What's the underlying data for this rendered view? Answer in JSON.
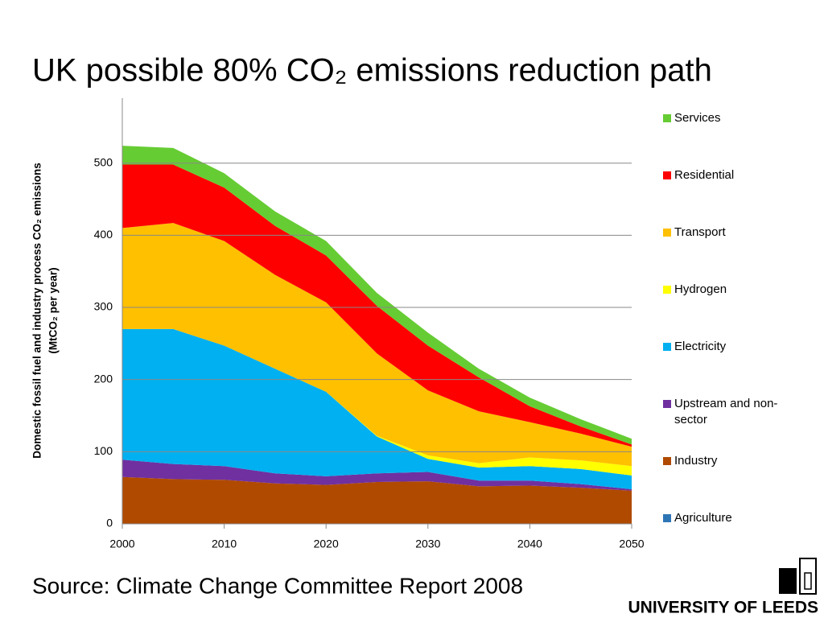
{
  "chart_data": {
    "type": "stacked_area",
    "title": "UK possible 80% CO₂ emissions reduction path",
    "y_label": [
      "Domestic fossil fuel and industry process CO₂ emissions",
      "(MtCO₂ per year)"
    ],
    "source": "Source: Climate Change Committee Report 2008",
    "logo": "UNIVERSITY OF LEEDS",
    "x": [
      2000,
      2005,
      2010,
      2015,
      2020,
      2025,
      2030,
      2035,
      2040,
      2045,
      2050
    ],
    "series": [
      {
        "name": "Agriculture",
        "color": "#2e75b6",
        "values": [
          0,
          0,
          0,
          0,
          0,
          0,
          0,
          0,
          0,
          0,
          0
        ]
      },
      {
        "name": "Industry",
        "color": "#b04a00",
        "values": [
          65,
          62,
          61,
          56,
          54,
          58,
          59,
          52,
          53,
          50,
          46
        ]
      },
      {
        "name": "Upstream and non-sector",
        "color": "#7030a0",
        "values": [
          24,
          21,
          19,
          14,
          12,
          12,
          13,
          8,
          7,
          5,
          2
        ]
      },
      {
        "name": "Electricity",
        "color": "#00b0f0",
        "values": [
          181,
          187,
          167,
          145,
          117,
          51,
          18,
          18,
          20,
          21,
          19
        ]
      },
      {
        "name": "Hydrogen",
        "color": "#ffff00",
        "values": [
          0,
          0,
          0,
          0,
          0,
          1,
          5,
          6,
          12,
          12,
          13
        ]
      },
      {
        "name": "Transport",
        "color": "#ffc000",
        "values": [
          140,
          147,
          145,
          130,
          124,
          114,
          90,
          72,
          49,
          37,
          27
        ]
      },
      {
        "name": "Residential",
        "color": "#ff0000",
        "values": [
          88,
          81,
          74,
          68,
          65,
          66,
          62,
          47,
          22,
          10,
          3
        ]
      },
      {
        "name": "Services",
        "color": "#66cc33",
        "values": [
          26,
          23,
          20,
          20,
          20,
          18,
          18,
          12,
          12,
          10,
          8
        ]
      }
    ],
    "xlim": [
      2000,
      2050
    ],
    "xticks": [
      2000,
      2010,
      2020,
      2030,
      2040,
      2050
    ],
    "ylim": [
      0,
      590
    ],
    "yticks": [
      0,
      100,
      200,
      300,
      400,
      500
    ],
    "grid": true
  }
}
